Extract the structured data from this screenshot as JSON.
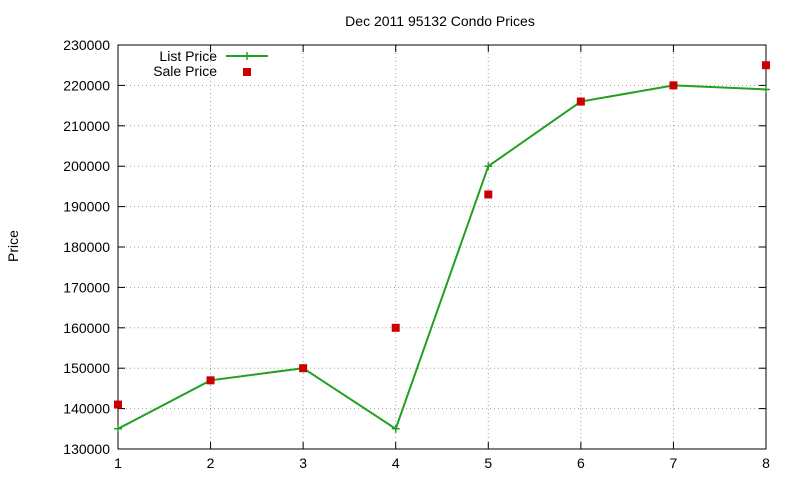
{
  "chart_data": {
    "type": "line",
    "title": "Dec 2011 95132 Condo Prices",
    "xlabel": "",
    "ylabel": "Price",
    "x": [
      1,
      2,
      3,
      4,
      5,
      6,
      7,
      8
    ],
    "xlim": [
      1,
      8
    ],
    "ylim": [
      130000,
      230000
    ],
    "xticks": [
      1,
      2,
      3,
      4,
      5,
      6,
      7,
      8
    ],
    "yticks": [
      130000,
      140000,
      150000,
      160000,
      170000,
      180000,
      190000,
      200000,
      210000,
      220000,
      230000
    ],
    "grid": true,
    "legend_position": "top-left",
    "series": [
      {
        "name": "List Price",
        "style": "line with + markers",
        "color": "#22a022",
        "values": [
          135000,
          147000,
          150000,
          135000,
          200000,
          216000,
          220000,
          219000
        ]
      },
      {
        "name": "Sale Price",
        "style": "square markers",
        "color": "#cc0000",
        "values": [
          141000,
          147000,
          150000,
          160000,
          193000,
          216000,
          220000,
          225000
        ]
      }
    ]
  }
}
